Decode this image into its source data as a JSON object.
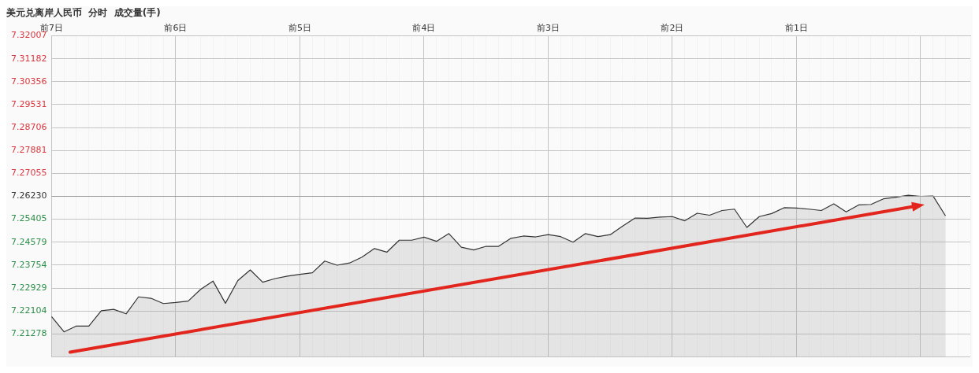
{
  "chart_data": {
    "type": "area",
    "title": "美元兑离岸人民币  分时  成交量(手)",
    "categories": [
      "前7日",
      null,
      null,
      null,
      null,
      null,
      null,
      null,
      null,
      null,
      "前6日",
      null,
      null,
      null,
      null,
      null,
      null,
      null,
      null,
      null,
      "前5日",
      null,
      null,
      null,
      null,
      null,
      null,
      null,
      null,
      null,
      "前4日",
      null,
      null,
      null,
      null,
      null,
      null,
      null,
      null,
      null,
      "前3日",
      null,
      null,
      null,
      null,
      null,
      null,
      null,
      null,
      null,
      "前2日",
      null,
      null,
      null,
      null,
      null,
      null,
      null,
      null,
      null,
      "前1日",
      null,
      null,
      null,
      null,
      null,
      null,
      null,
      null,
      null,
      null,
      null,
      null,
      null,
      null
    ],
    "series": [
      {
        "color": "#333333",
        "values": [
          7.219,
          7.2135,
          7.2156,
          7.2156,
          7.2211,
          7.2216,
          7.22,
          7.2261,
          7.2256,
          7.2237,
          7.2241,
          7.2246,
          7.2288,
          7.2318,
          7.2238,
          7.232,
          7.2358,
          7.2314,
          7.2327,
          7.2336,
          7.2342,
          7.2348,
          7.239,
          7.2375,
          7.2383,
          7.2404,
          7.2435,
          7.2422,
          7.2465,
          7.2465,
          7.2476,
          7.2461,
          7.2489,
          7.244,
          7.243,
          7.2443,
          7.2443,
          7.2472,
          7.248,
          7.2477,
          7.2485,
          7.2478,
          7.2458,
          7.2489,
          7.2478,
          7.2485,
          7.2516,
          7.2545,
          7.2544,
          7.2548,
          7.255,
          7.2535,
          7.2562,
          7.2555,
          7.2572,
          7.2577,
          7.2511,
          7.255,
          7.2561,
          7.2582,
          7.2581,
          7.2577,
          7.2572,
          7.2596,
          7.2567,
          7.2592,
          7.2594,
          7.2614,
          7.262,
          7.2627,
          7.2623,
          7.2624,
          7.2553,
          null,
          null
        ]
      }
    ],
    "ylim": [
      7.20453,
      7.32007
    ],
    "yticks": [
      {
        "value": 7.20453,
        "label": null
      },
      7.21278,
      7.22104,
      7.22929,
      7.23754,
      7.24579,
      7.25405,
      {
        "value": 7.2623,
        "label": "7.26230"
      },
      7.27055,
      7.27881,
      7.28706,
      7.29531,
      7.30356,
      7.31182,
      7.32007
    ],
    "ref_lines": [
      {
        "axis": "y",
        "value": 7.2623,
        "color": "#9a9a9a"
      }
    ],
    "grid": true,
    "legend": false,
    "marker": "none",
    "line_style": "solid"
  }
}
